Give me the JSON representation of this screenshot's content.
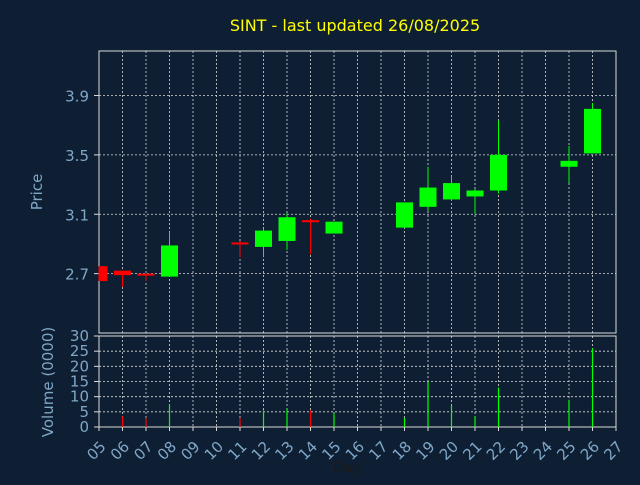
{
  "colors": {
    "background": "#0f1f33",
    "plot_background": "#0f1f33",
    "axis_text": "#7fa7c8",
    "title_text": "#ffff00",
    "grid": "#d9d9d9",
    "up": "#00ff00",
    "down": "#ff0000",
    "day_label": "#1a1a1a"
  },
  "chart_data": {
    "type": "candlestick",
    "title": "SINT - last updated 26/08/2025",
    "xlabel": "Day",
    "x_ticks": [
      "05",
      "06",
      "07",
      "08",
      "09",
      "10",
      "11",
      "12",
      "13",
      "14",
      "15",
      "16",
      "17",
      "18",
      "19",
      "20",
      "21",
      "22",
      "23",
      "24",
      "25",
      "26",
      "27"
    ],
    "grid": true,
    "price_panel": {
      "ylabel": "Price",
      "ylim": [
        2.3,
        4.2
      ],
      "y_ticks": [
        "2.7",
        "3.1",
        "3.5",
        "3.9"
      ],
      "candles": [
        {
          "day": "05",
          "open": 2.75,
          "close": 2.65,
          "high": 2.75,
          "low": 2.65
        },
        {
          "day": "06",
          "open": 2.72,
          "close": 2.69,
          "high": 2.72,
          "low": 2.61
        },
        {
          "day": "07",
          "open": 2.7,
          "close": 2.69,
          "high": 2.7,
          "low": 2.65
        },
        {
          "day": "08",
          "open": 2.68,
          "close": 2.89,
          "high": 2.98,
          "low": 2.68
        },
        {
          "day": "11",
          "open": 2.91,
          "close": 2.9,
          "high": 2.92,
          "low": 2.81
        },
        {
          "day": "12",
          "open": 2.88,
          "close": 2.99,
          "high": 3.0,
          "low": 2.81
        },
        {
          "day": "13",
          "open": 2.92,
          "close": 3.08,
          "high": 3.11,
          "low": 2.86
        },
        {
          "day": "14",
          "open": 3.06,
          "close": 3.05,
          "high": 3.07,
          "low": 2.83
        },
        {
          "day": "15",
          "open": 2.97,
          "close": 3.05,
          "high": 3.05,
          "low": 2.97
        },
        {
          "day": "18",
          "open": 3.01,
          "close": 3.18,
          "high": 3.18,
          "low": 3.01
        },
        {
          "day": "19",
          "open": 3.15,
          "close": 3.28,
          "high": 3.42,
          "low": 3.12
        },
        {
          "day": "20",
          "open": 3.2,
          "close": 3.31,
          "high": 3.36,
          "low": 3.19
        },
        {
          "day": "21",
          "open": 3.22,
          "close": 3.26,
          "high": 3.27,
          "low": 3.1
        },
        {
          "day": "22",
          "open": 3.26,
          "close": 3.5,
          "high": 3.73,
          "low": 3.24
        },
        {
          "day": "25",
          "open": 3.42,
          "close": 3.46,
          "high": 3.56,
          "low": 3.31
        },
        {
          "day": "26",
          "open": 3.51,
          "close": 3.81,
          "high": 3.85,
          "low": 3.51
        }
      ]
    },
    "volume_panel": {
      "ylabel": "Volume (0000)",
      "ylim": [
        0,
        30
      ],
      "y_ticks": [
        "0",
        "5",
        "10",
        "15",
        "20",
        "25",
        "30"
      ],
      "bars": [
        {
          "day": "06",
          "value": 3.5,
          "direction": "down"
        },
        {
          "day": "07",
          "value": 3,
          "direction": "down"
        },
        {
          "day": "08",
          "value": 7.5,
          "direction": "up"
        },
        {
          "day": "11",
          "value": 3,
          "direction": "down"
        },
        {
          "day": "12",
          "value": 5.5,
          "direction": "up"
        },
        {
          "day": "13",
          "value": 6,
          "direction": "up"
        },
        {
          "day": "14",
          "value": 5.5,
          "direction": "down"
        },
        {
          "day": "15",
          "value": 4.5,
          "direction": "up"
        },
        {
          "day": "18",
          "value": 3,
          "direction": "up"
        },
        {
          "day": "19",
          "value": 15,
          "direction": "up"
        },
        {
          "day": "20",
          "value": 7,
          "direction": "up"
        },
        {
          "day": "21",
          "value": 3.5,
          "direction": "up"
        },
        {
          "day": "22",
          "value": 13,
          "direction": "up"
        },
        {
          "day": "25",
          "value": 9,
          "direction": "up"
        },
        {
          "day": "26",
          "value": 26,
          "direction": "up"
        }
      ]
    }
  }
}
